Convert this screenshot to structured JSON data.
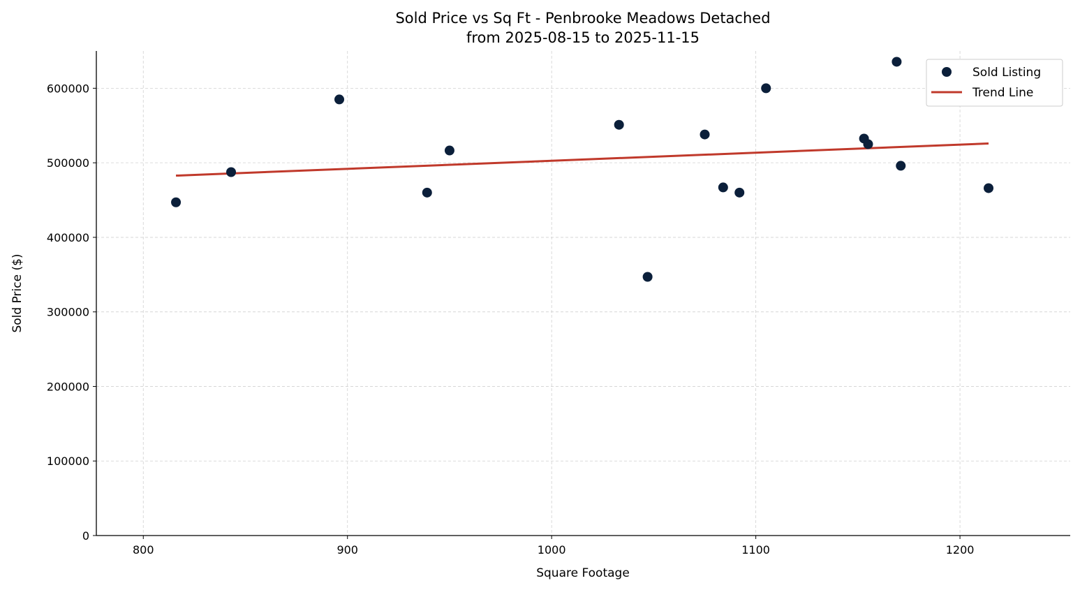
{
  "chart_data": {
    "type": "scatter",
    "title": "Sold Price vs Sq Ft - Penbrooke Meadows Detached",
    "subtitle": "from 2025-08-15 to 2025-11-15",
    "xlabel": "Square Footage",
    "ylabel": "Sold Price ($)",
    "xlim": [
      777,
      1254
    ],
    "ylim": [
      0,
      650000
    ],
    "xticks": [
      800,
      900,
      1000,
      1100,
      1200
    ],
    "yticks": [
      0,
      100000,
      200000,
      300000,
      400000,
      500000,
      600000
    ],
    "grid": true,
    "legend_position": "top-right",
    "series": [
      {
        "name": "Sold Listing",
        "type": "scatter",
        "color": "#0b1f3a",
        "points": [
          [
            816,
            447000
          ],
          [
            843,
            487500
          ],
          [
            896,
            585000
          ],
          [
            939,
            460000
          ],
          [
            950,
            516500
          ],
          [
            1033,
            551000
          ],
          [
            1047,
            347000
          ],
          [
            1075,
            538000
          ],
          [
            1084,
            467000
          ],
          [
            1092,
            460000
          ],
          [
            1105,
            600000
          ],
          [
            1153,
            532500
          ],
          [
            1155,
            525000
          ],
          [
            1169,
            635500
          ],
          [
            1171,
            496000
          ],
          [
            1214,
            466000
          ]
        ]
      },
      {
        "name": "Trend Line",
        "type": "line",
        "color": "#c0392b",
        "points": [
          [
            816,
            482800
          ],
          [
            1214,
            525900
          ]
        ]
      }
    ]
  }
}
